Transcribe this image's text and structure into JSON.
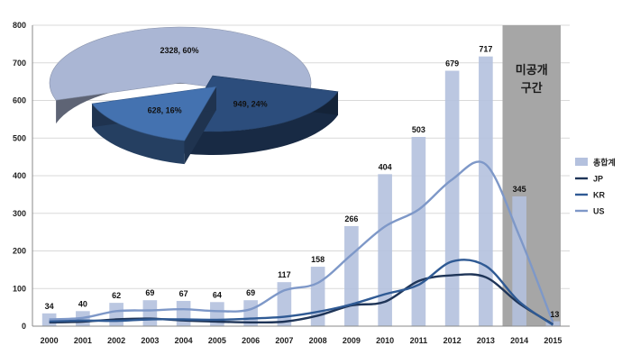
{
  "chart_data": {
    "type": "bar",
    "categories": [
      "2000",
      "2001",
      "2002",
      "2003",
      "2004",
      "2005",
      "2006",
      "2007",
      "2008",
      "2009",
      "2010",
      "2011",
      "2012",
      "2013",
      "2014",
      "2015"
    ],
    "ylim": [
      0,
      800
    ],
    "yticks": [
      0,
      100,
      200,
      300,
      400,
      500,
      600,
      700,
      800
    ],
    "grid": true,
    "legend_position": "right",
    "colors": {
      "total": "#b4c1de",
      "jp": "#1f3558",
      "kr": "#2f5a94",
      "us": "#7e98c8",
      "shade": "#a6a6a6"
    },
    "series": [
      {
        "name": "총합계",
        "kind": "bar",
        "values": [
          34,
          40,
          62,
          69,
          67,
          64,
          69,
          117,
          158,
          266,
          404,
          503,
          679,
          717,
          345,
          13
        ],
        "labels": [
          "34",
          "40",
          "62",
          "69",
          "67",
          "64",
          "69",
          "117",
          "158",
          "266",
          "404",
          "503",
          "679",
          "717",
          "345",
          "13"
        ]
      },
      {
        "name": "JP",
        "kind": "line",
        "values": [
          10,
          12,
          18,
          20,
          15,
          12,
          10,
          12,
          28,
          55,
          65,
          120,
          135,
          130,
          60,
          5
        ]
      },
      {
        "name": "KR",
        "kind": "line",
        "values": [
          13,
          15,
          14,
          18,
          18,
          17,
          20,
          25,
          38,
          58,
          85,
          110,
          172,
          160,
          65,
          3
        ]
      },
      {
        "name": "US",
        "kind": "line",
        "values": [
          18,
          22,
          40,
          42,
          45,
          40,
          45,
          95,
          115,
          190,
          265,
          310,
          390,
          430,
          240,
          10
        ]
      }
    ],
    "shaded_region": {
      "from": "2014",
      "to": "2015",
      "label_lines": [
        "미공개",
        "구간"
      ]
    },
    "inset_pie": {
      "slices": [
        {
          "value": 2328,
          "percent": 60,
          "label": "2328, 60%",
          "color": "#aab6d4"
        },
        {
          "value": 949,
          "percent": 24,
          "label": "949, 24%",
          "color": "#2c4d7c"
        },
        {
          "value": 628,
          "percent": 16,
          "label": "628, 16%",
          "color": "#4472b0"
        }
      ]
    }
  }
}
